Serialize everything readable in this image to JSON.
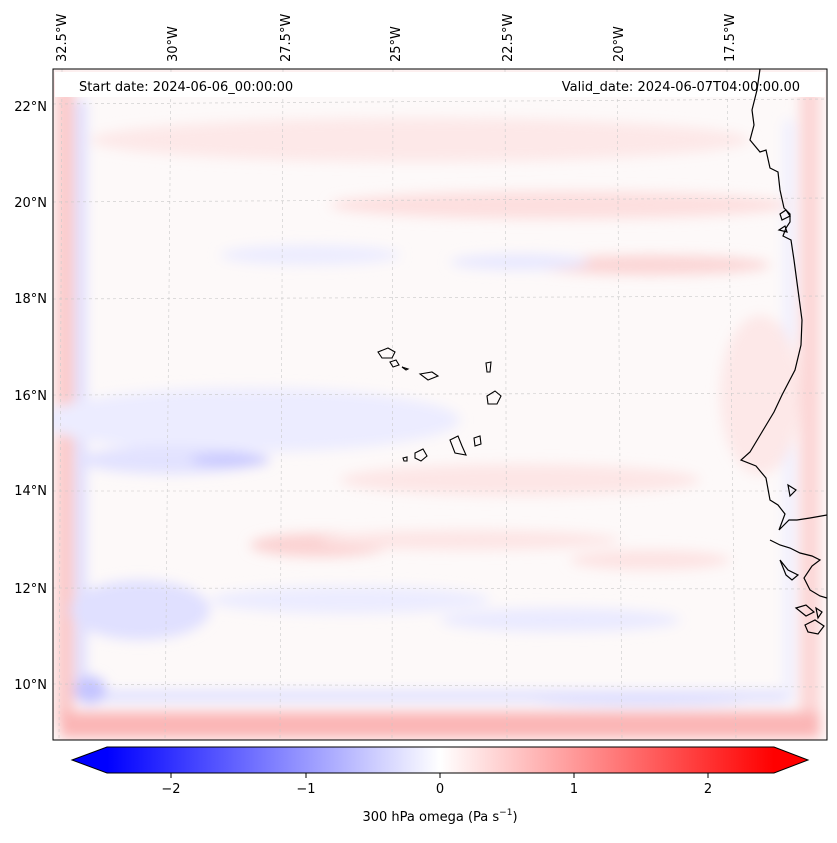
{
  "header": {
    "start_date": "Start date: 2024-06-06_00:00:00",
    "valid_date": "Valid_date: 2024-06-07T04:00:00.00"
  },
  "map": {
    "longitude_labels": [
      "32.5°W",
      "30°W",
      "27.5°W",
      "25°W",
      "22.5°W",
      "20°W",
      "17.5°W"
    ],
    "latitude_labels": [
      "22°N",
      "20°N",
      "18°N",
      "16°N",
      "14°N",
      "12°N",
      "10°N"
    ],
    "gridlines": true,
    "features": [
      "Cape Verde islands",
      "West African coastline"
    ]
  },
  "colorbar": {
    "label": "300 hPa omega (Pa s",
    "label_sup": "−1",
    "label_close": ")",
    "ticks": [
      "−2",
      "−1",
      "0",
      "1",
      "2"
    ],
    "range": [
      -2.75,
      2.75
    ],
    "colormap": "bwr",
    "colors": {
      "low": "#0000ff",
      "mid": "#ffffff",
      "high": "#ff0000"
    }
  }
}
